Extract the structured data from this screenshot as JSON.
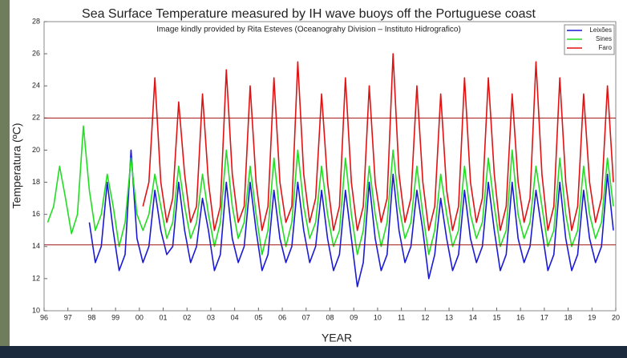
{
  "chart_data": {
    "type": "line",
    "title": "Sea Surface Temperature measured by IH wave buoys off the Portuguese coast",
    "subtitle": "Image kindly provided by Rita Esteves (Oceanograhy Division – Instituto Hidrografico)",
    "xlabel": "YEAR",
    "ylabel": "Temperatura (ºC)",
    "xlim": [
      1996,
      2020
    ],
    "ylim": [
      10,
      28
    ],
    "yticks": [
      10,
      12,
      14,
      16,
      18,
      20,
      22,
      24,
      26,
      28
    ],
    "xticks": [
      {
        "value": 1996,
        "label": "96"
      },
      {
        "value": 1997,
        "label": "97"
      },
      {
        "value": 1998,
        "label": "98"
      },
      {
        "value": 1999,
        "label": "99"
      },
      {
        "value": 2000,
        "label": "00"
      },
      {
        "value": 2001,
        "label": "01"
      },
      {
        "value": 2002,
        "label": "02"
      },
      {
        "value": 2003,
        "label": "03"
      },
      {
        "value": 2004,
        "label": "04"
      },
      {
        "value": 2005,
        "label": "05"
      },
      {
        "value": 2006,
        "label": "06"
      },
      {
        "value": 2007,
        "label": "07"
      },
      {
        "value": 2008,
        "label": "08"
      },
      {
        "value": 2009,
        "label": "09"
      },
      {
        "value": 2010,
        "label": "10"
      },
      {
        "value": 2011,
        "label": "11"
      },
      {
        "value": 2012,
        "label": "12"
      },
      {
        "value": 2013,
        "label": "13"
      },
      {
        "value": 2014,
        "label": "14"
      },
      {
        "value": 2015,
        "label": "15"
      },
      {
        "value": 2016,
        "label": "16"
      },
      {
        "value": 2017,
        "label": "17"
      },
      {
        "value": 2018,
        "label": "18"
      },
      {
        "value": 2019,
        "label": "19"
      },
      {
        "value": 2020,
        "label": "20"
      }
    ],
    "hlines": [
      22,
      14.1
    ],
    "hline_color": "#a01515",
    "legend": "upper right",
    "x": [
      1996.15,
      1996.4,
      1996.65,
      1996.9,
      1997.15,
      1997.4,
      1997.65,
      1997.9,
      1998.15,
      1998.4,
      1998.65,
      1998.9,
      1999.15,
      1999.4,
      1999.65,
      1999.9,
      2000.15,
      2000.4,
      2000.65,
      2000.9,
      2001.15,
      2001.4,
      2001.65,
      2001.9,
      2002.15,
      2002.4,
      2002.65,
      2002.9,
      2003.15,
      2003.4,
      2003.65,
      2003.9,
      2004.15,
      2004.4,
      2004.65,
      2004.9,
      2005.15,
      2005.4,
      2005.65,
      2005.9,
      2006.15,
      2006.4,
      2006.65,
      2006.9,
      2007.15,
      2007.4,
      2007.65,
      2007.9,
      2008.15,
      2008.4,
      2008.65,
      2008.9,
      2009.15,
      2009.4,
      2009.65,
      2009.9,
      2010.15,
      2010.4,
      2010.65,
      2010.9,
      2011.15,
      2011.4,
      2011.65,
      2011.9,
      2012.15,
      2012.4,
      2012.65,
      2012.9,
      2013.15,
      2013.4,
      2013.65,
      2013.9,
      2014.15,
      2014.4,
      2014.65,
      2014.9,
      2015.15,
      2015.4,
      2015.65,
      2015.9,
      2016.15,
      2016.4,
      2016.65,
      2016.9,
      2017.15,
      2017.4,
      2017.65,
      2017.9,
      2018.15,
      2018.4,
      2018.65,
      2018.9,
      2019.15,
      2019.4,
      2019.65,
      2019.9
    ],
    "series": [
      {
        "name": "Leixões",
        "color": "#1a1ad6",
        "values": [
          null,
          null,
          null,
          null,
          null,
          null,
          null,
          15.5,
          13.0,
          14.0,
          18.0,
          15.0,
          12.5,
          13.5,
          20.0,
          14.5,
          13.0,
          14.0,
          17.5,
          15.0,
          13.5,
          14.0,
          18.0,
          15.0,
          13.0,
          14.0,
          17.0,
          15.0,
          12.5,
          13.5,
          18.0,
          14.5,
          13.0,
          14.0,
          18.0,
          15.0,
          12.5,
          13.5,
          17.5,
          14.5,
          13.0,
          14.0,
          18.0,
          15.0,
          13.0,
          14.0,
          17.5,
          14.5,
          12.5,
          13.5,
          17.5,
          14.5,
          11.5,
          13.0,
          18.0,
          14.5,
          12.5,
          13.5,
          18.5,
          15.0,
          13.0,
          14.0,
          17.5,
          15.0,
          12.0,
          13.5,
          17.0,
          14.5,
          12.5,
          13.5,
          17.5,
          14.5,
          13.0,
          14.0,
          18.0,
          15.0,
          12.5,
          13.5,
          18.0,
          14.5,
          13.0,
          14.0,
          17.5,
          15.0,
          12.5,
          13.5,
          18.0,
          14.5,
          12.5,
          13.5,
          17.5,
          14.5,
          13.0,
          14.0,
          18.5,
          15.0
        ]
      },
      {
        "name": "Sines",
        "color": "#22dd22",
        "values": [
          15.5,
          16.5,
          19.0,
          17.0,
          14.8,
          16.0,
          21.5,
          17.5,
          15.0,
          16.0,
          18.5,
          16.5,
          14.0,
          15.5,
          19.5,
          16.0,
          15.0,
          16.0,
          18.5,
          16.5,
          14.5,
          15.5,
          19.0,
          16.5,
          14.5,
          15.5,
          18.5,
          16.0,
          14.0,
          15.5,
          20.0,
          16.5,
          14.5,
          15.5,
          19.0,
          16.0,
          13.5,
          15.0,
          19.5,
          16.0,
          14.0,
          15.5,
          20.0,
          16.5,
          14.5,
          15.5,
          19.0,
          16.0,
          14.0,
          15.0,
          19.5,
          16.0,
          13.5,
          15.0,
          19.0,
          16.0,
          14.0,
          15.5,
          20.0,
          16.5,
          14.5,
          15.5,
          19.0,
          16.0,
          13.5,
          15.0,
          18.5,
          16.0,
          14.0,
          15.0,
          19.0,
          16.0,
          14.5,
          15.5,
          19.5,
          16.5,
          14.0,
          15.0,
          20.0,
          16.0,
          14.5,
          15.5,
          19.0,
          16.5,
          14.0,
          15.0,
          19.5,
          16.0,
          14.0,
          15.0,
          19.0,
          16.0,
          14.5,
          15.5,
          19.5,
          16.5
        ]
      },
      {
        "name": "Faro",
        "color": "#e01212",
        "values": [
          null,
          null,
          null,
          null,
          null,
          null,
          null,
          null,
          null,
          null,
          null,
          null,
          null,
          null,
          null,
          null,
          16.5,
          18.0,
          24.5,
          18.0,
          15.5,
          17.0,
          23.0,
          18.5,
          15.5,
          16.5,
          23.5,
          18.0,
          15.0,
          16.5,
          25.0,
          18.5,
          15.5,
          16.5,
          24.0,
          18.0,
          15.0,
          16.5,
          24.5,
          18.0,
          15.5,
          16.5,
          25.5,
          18.5,
          15.5,
          17.0,
          23.5,
          18.0,
          15.0,
          16.5,
          24.5,
          18.0,
          15.0,
          16.5,
          24.0,
          18.0,
          15.5,
          17.0,
          26.0,
          18.5,
          15.5,
          17.0,
          24.0,
          18.0,
          15.0,
          16.5,
          23.5,
          17.5,
          15.0,
          16.5,
          24.5,
          18.0,
          15.5,
          17.0,
          24.5,
          18.5,
          15.0,
          16.5,
          23.5,
          18.0,
          15.5,
          17.0,
          25.5,
          18.5,
          15.0,
          16.5,
          24.5,
          18.0,
          15.0,
          16.5,
          23.5,
          18.0,
          15.5,
          17.0,
          24.0,
          18.0
        ]
      }
    ]
  }
}
